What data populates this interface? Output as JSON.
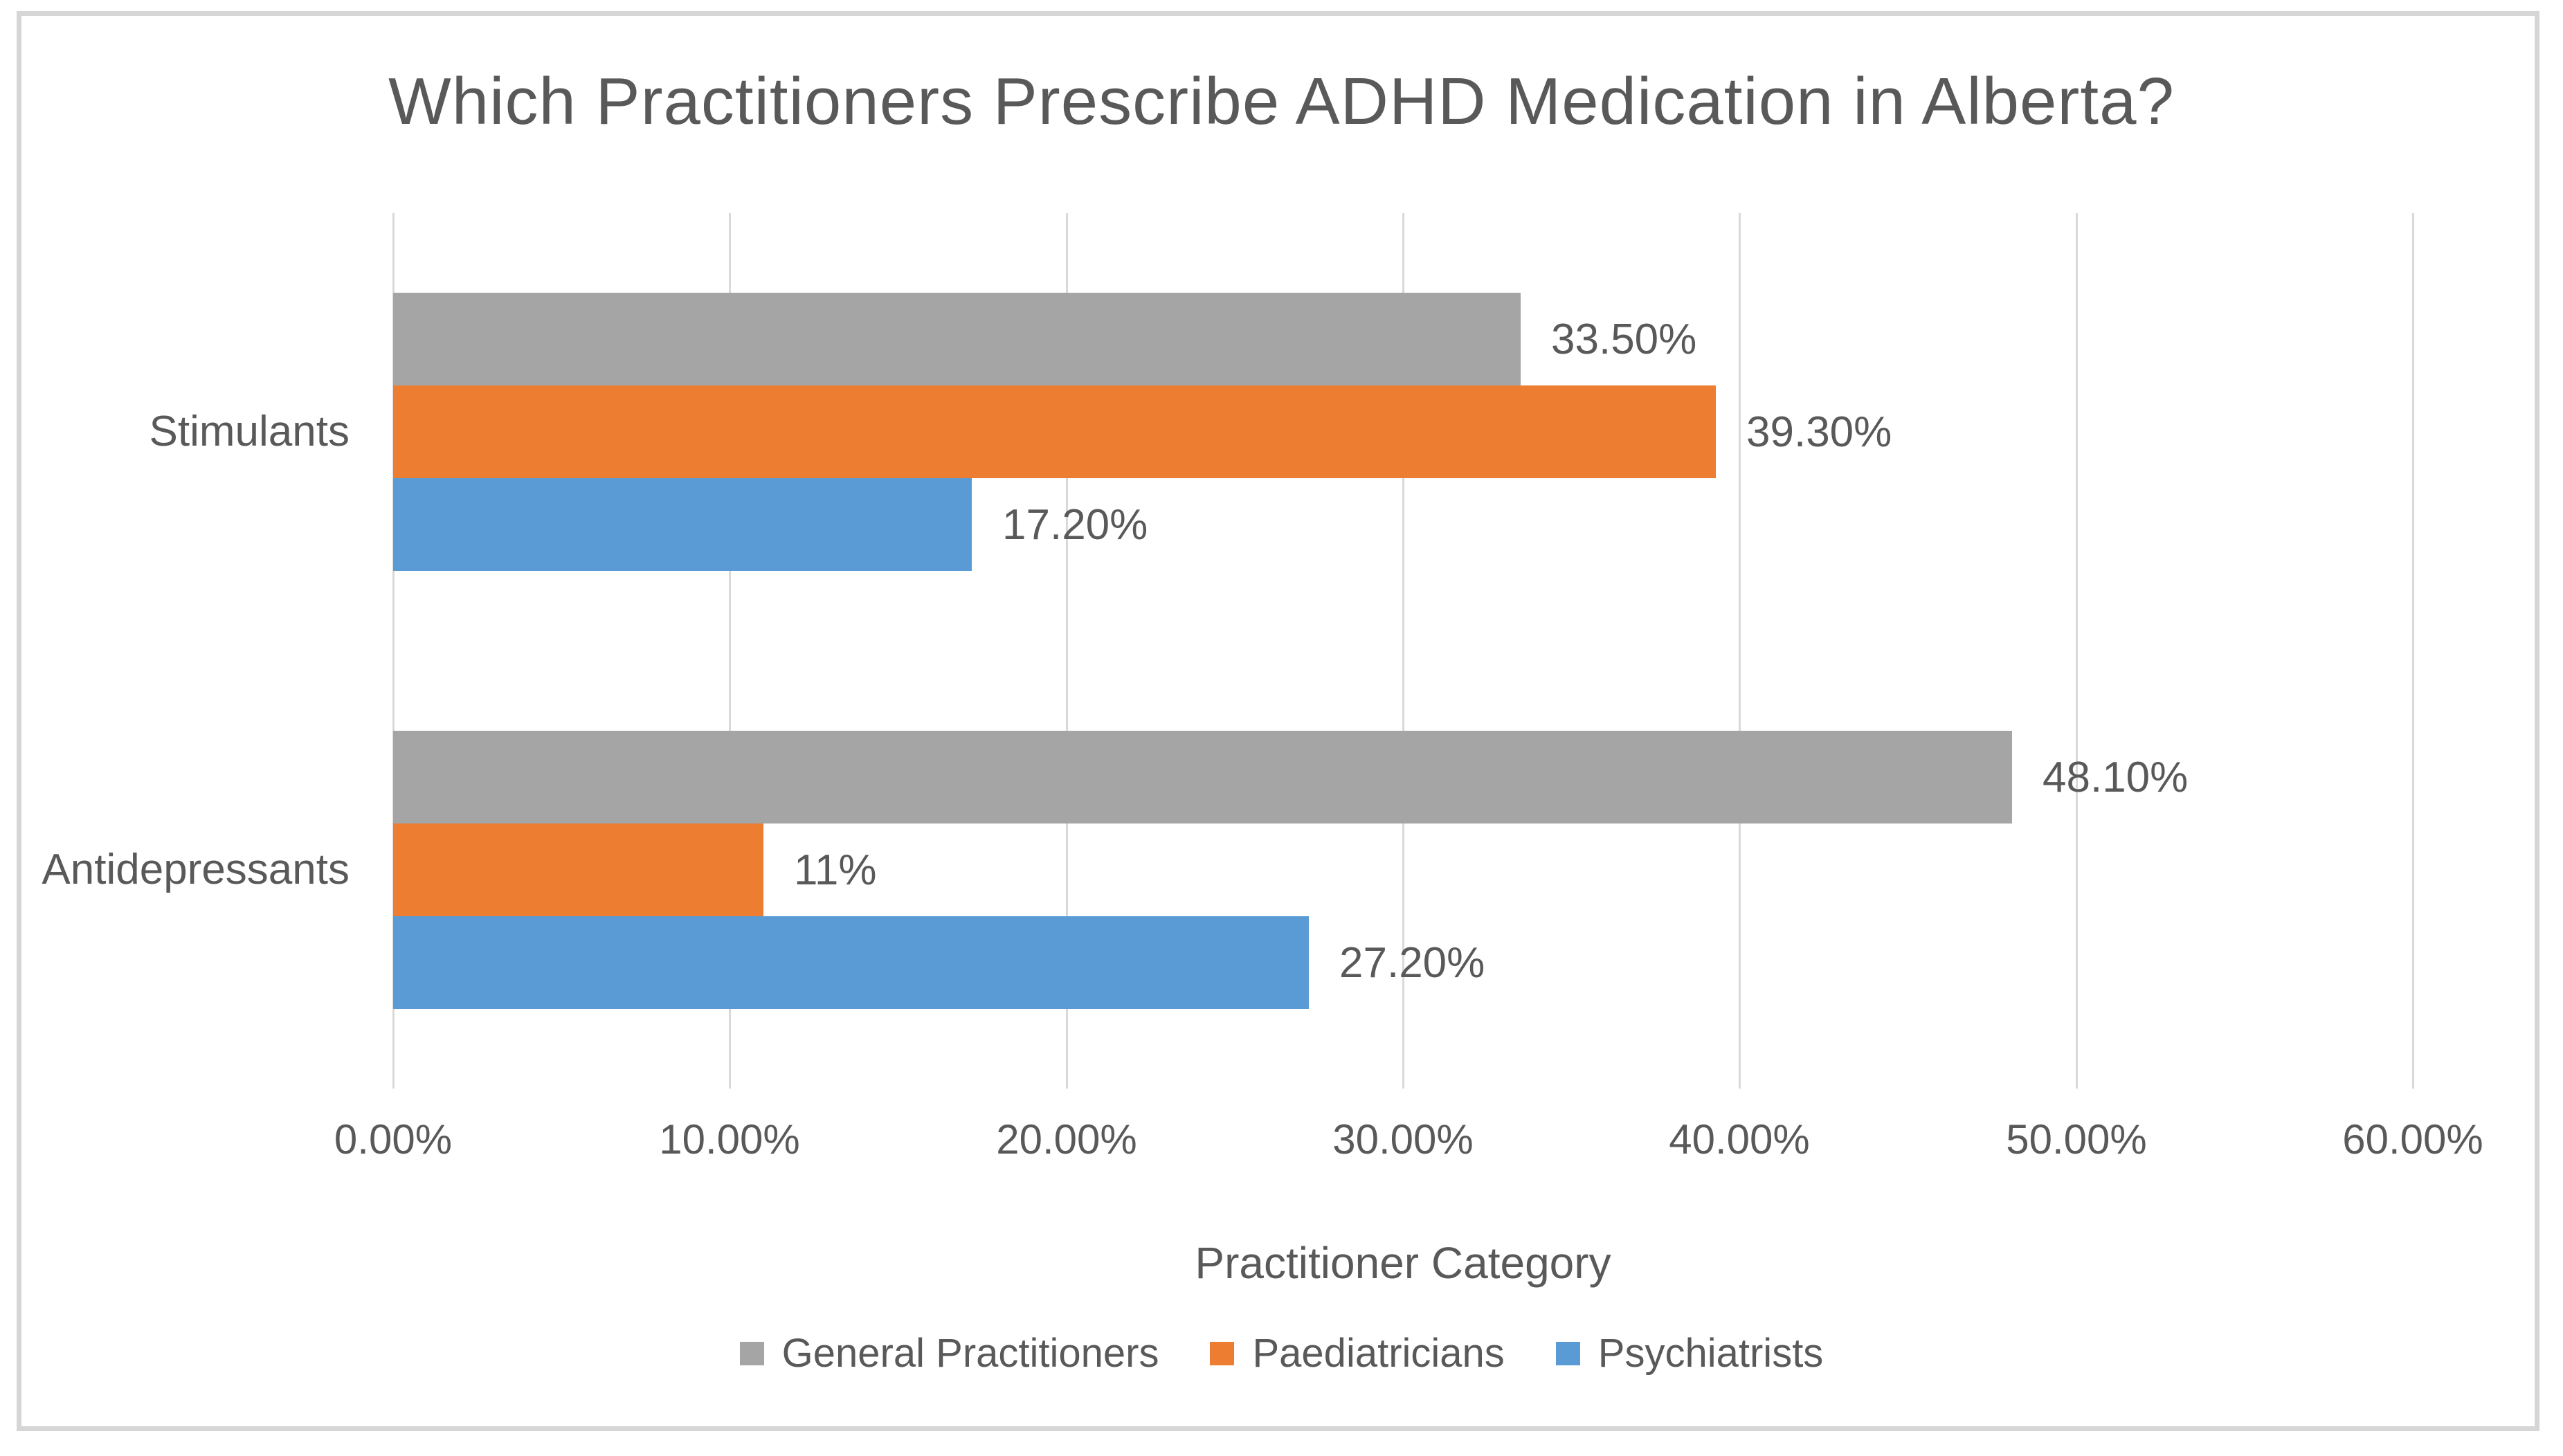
{
  "chart_data": {
    "type": "bar",
    "orientation": "horizontal",
    "title": "Which Practitioners Prescribe ADHD Medication in Alberta?",
    "axis_title": "Practitioner Category",
    "categories": [
      "Stimulants",
      "Antidepressants"
    ],
    "series": [
      {
        "name": "General Practitioners",
        "color": "#A5A5A5",
        "values": [
          33.5,
          48.1
        ],
        "labels": [
          "33.50%",
          "48.10%"
        ]
      },
      {
        "name": "Paediatricians",
        "color": "#ED7D31",
        "values": [
          39.3,
          11
        ],
        "labels": [
          "39.30%",
          "11%"
        ]
      },
      {
        "name": "Psychiatrists",
        "color": "#5B9BD5",
        "values": [
          17.2,
          27.2
        ],
        "labels": [
          "17.20%",
          "27.20%"
        ]
      }
    ],
    "x_axis": {
      "min": 0,
      "max": 60,
      "tick_step": 10,
      "tick_labels": [
        "0.00%",
        "10.00%",
        "20.00%",
        "30.00%",
        "40.00%",
        "50.00%",
        "60.00%"
      ]
    },
    "legend_position": "bottom",
    "grid": true,
    "text_color": "#595959",
    "gridline_color": "#D9D9D9"
  }
}
